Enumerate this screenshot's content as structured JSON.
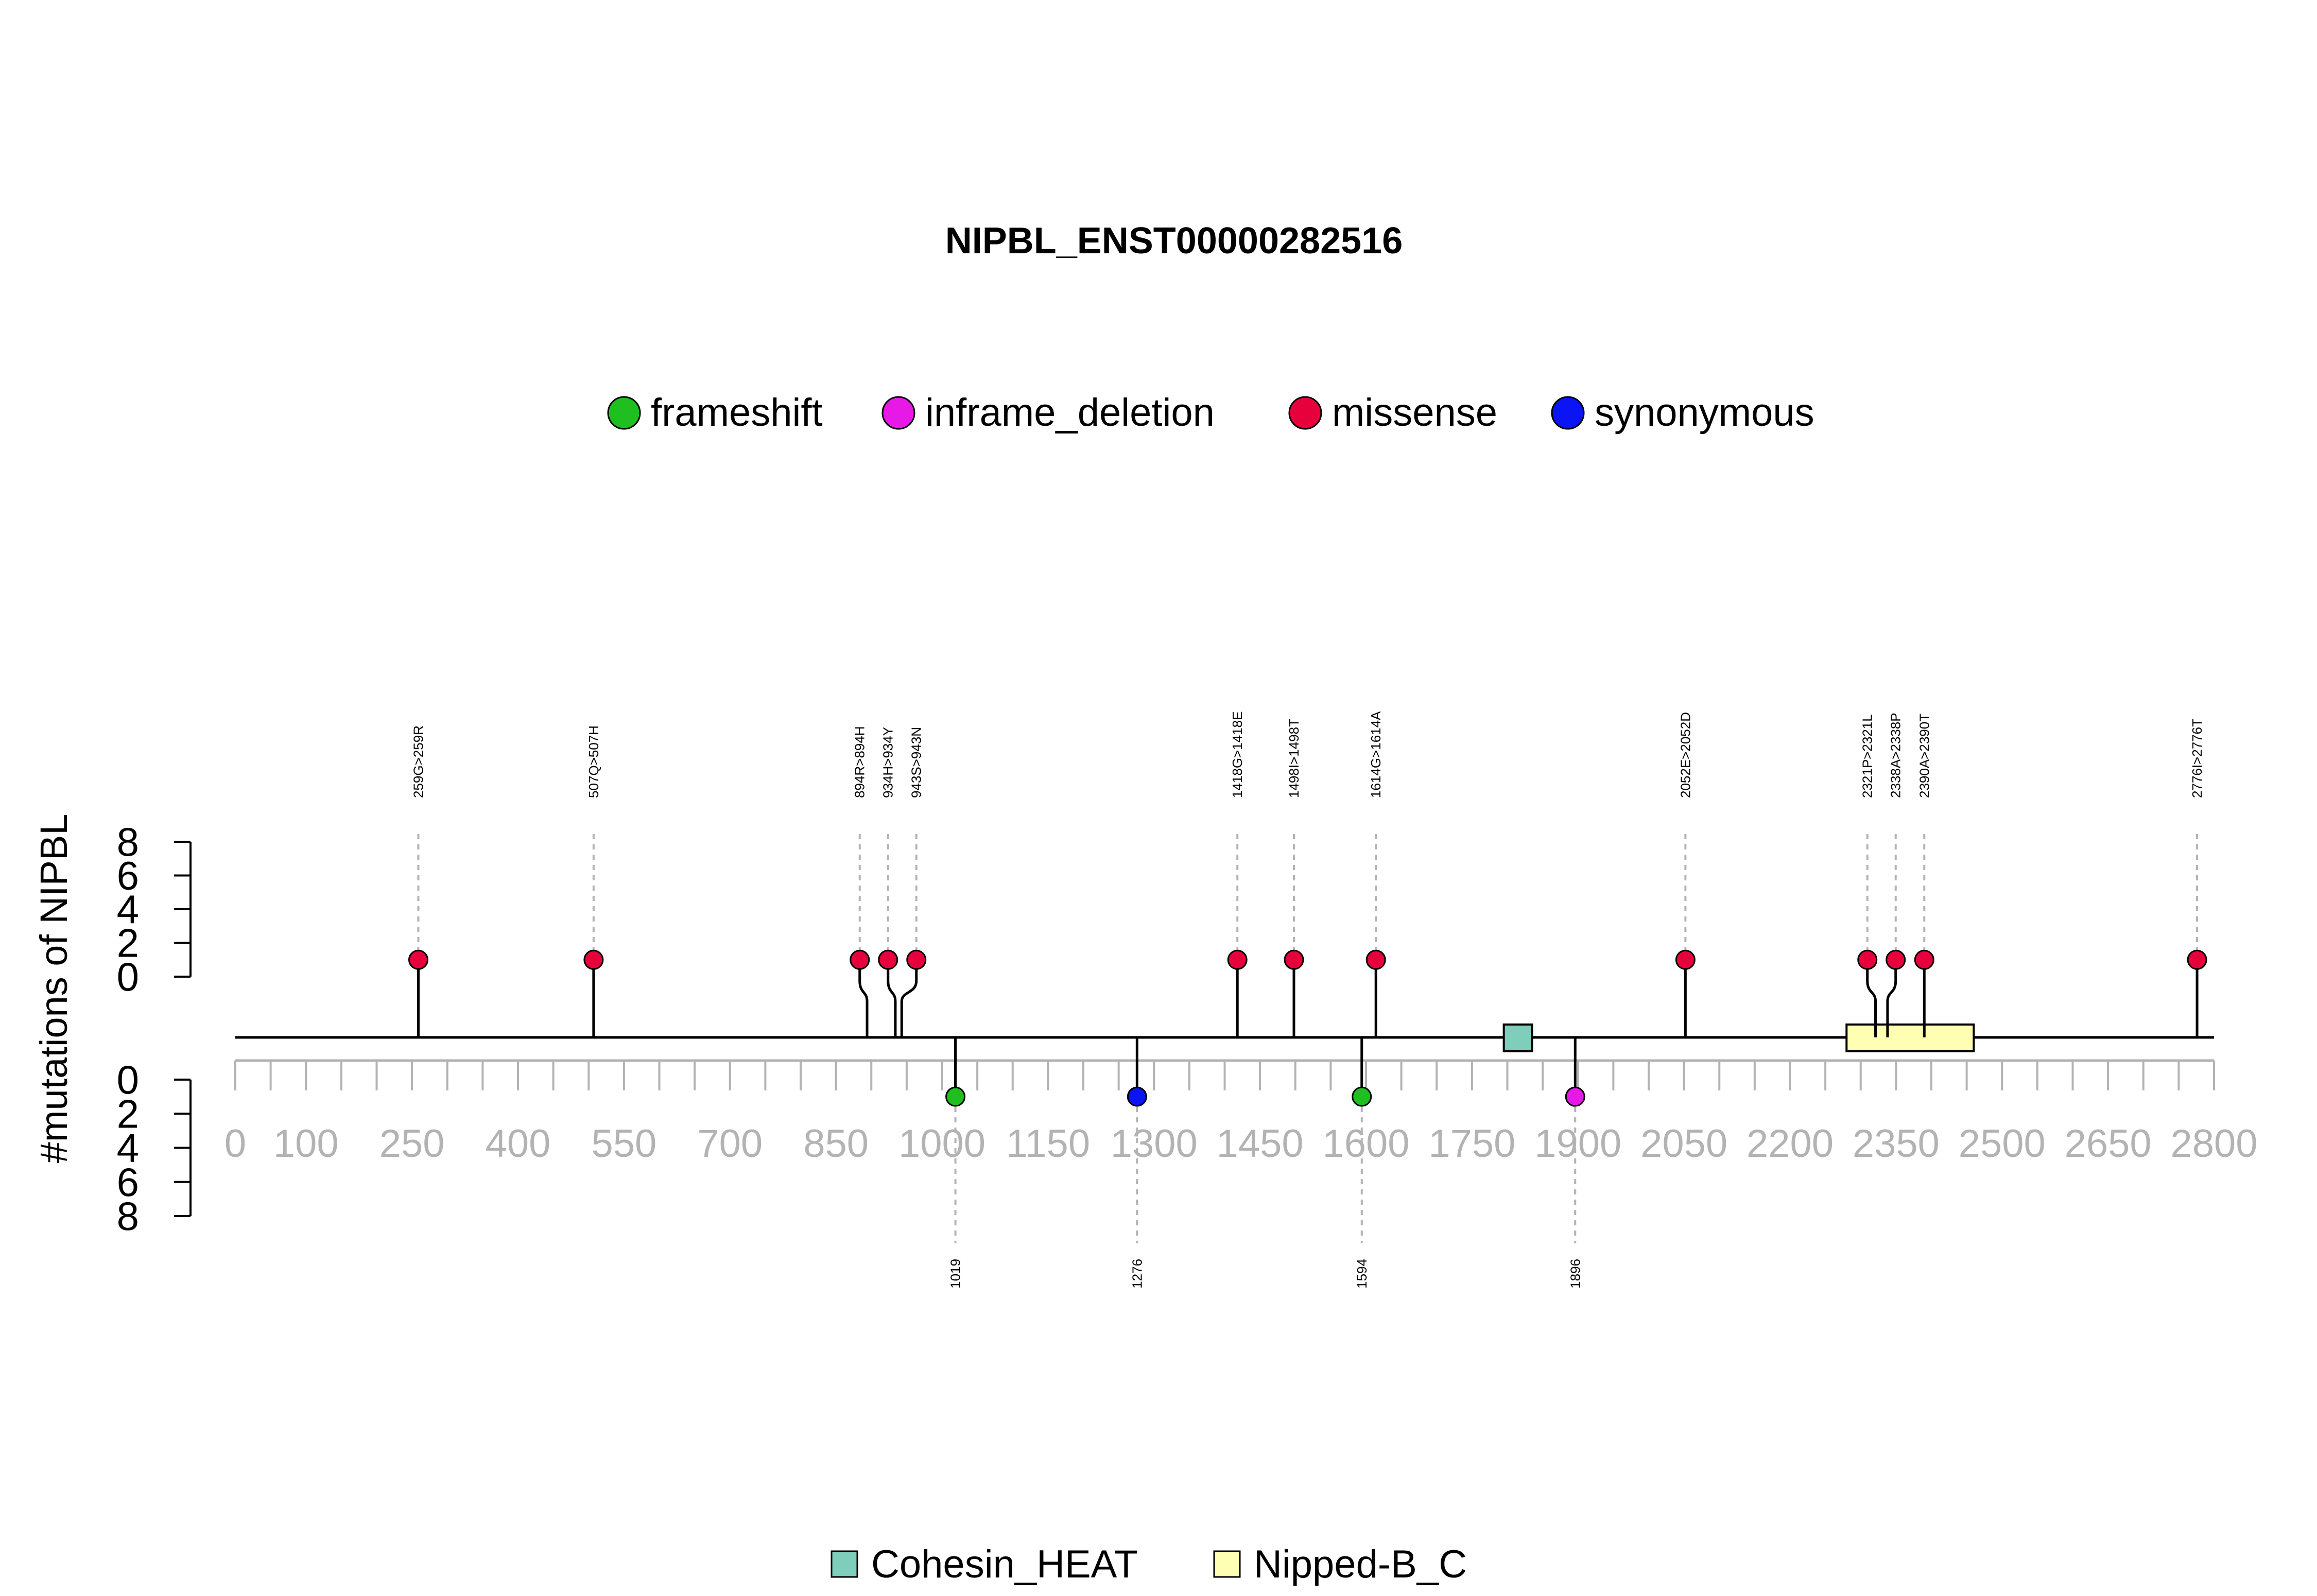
{
  "chart_data": {
    "type": "lollipop",
    "title": "NIPBL_ENST00000282516",
    "ylabel": "#mutations of NIPBL",
    "yticks": [
      "0",
      "2",
      "4",
      "6",
      "8"
    ],
    "ylim": [
      0,
      8
    ],
    "xlim": [
      0,
      2800
    ],
    "xticks_labeled": [
      "0",
      "100",
      "250",
      "400",
      "550",
      "700",
      "850",
      "1000",
      "1150",
      "1300",
      "1450",
      "1600",
      "1750",
      "1900",
      "2050",
      "2200",
      "2350",
      "2500",
      "2650",
      "2800"
    ],
    "xtick_minor_step": 50,
    "mutation_types": [
      {
        "name": "frameshift",
        "color": "#1fbf1f"
      },
      {
        "name": "inframe_deletion",
        "color": "#e619e6"
      },
      {
        "name": "missense",
        "color": "#e6003c"
      },
      {
        "name": "synonymous",
        "color": "#0a14f5"
      }
    ],
    "upper_mutations": [
      {
        "pos": 259,
        "label": "259G>259R",
        "type": "missense",
        "count": 1
      },
      {
        "pos": 507,
        "label": "507Q>507H",
        "type": "missense",
        "count": 1
      },
      {
        "pos": 894,
        "label": "894R>894H",
        "type": "missense",
        "count": 1
      },
      {
        "pos": 934,
        "label": "934H>934Y",
        "type": "missense",
        "count": 1
      },
      {
        "pos": 943,
        "label": "943S>943N",
        "type": "missense",
        "count": 1
      },
      {
        "pos": 1418,
        "label": "1418G>1418E",
        "type": "missense",
        "count": 1
      },
      {
        "pos": 1498,
        "label": "1498I>1498T",
        "type": "missense",
        "count": 1
      },
      {
        "pos": 1614,
        "label": "1614G>1614A",
        "type": "missense",
        "count": 1
      },
      {
        "pos": 2052,
        "label": "2052E>2052D",
        "type": "missense",
        "count": 1
      },
      {
        "pos": 2321,
        "label": "2321P>2321L",
        "type": "missense",
        "count": 1
      },
      {
        "pos": 2338,
        "label": "2338A>2338P",
        "type": "missense",
        "count": 1
      },
      {
        "pos": 2390,
        "label": "2390A>2390T",
        "type": "missense",
        "count": 1
      },
      {
        "pos": 2776,
        "label": "2776I>2776T",
        "type": "missense",
        "count": 1
      }
    ],
    "lower_mutations": [
      {
        "pos": 1019,
        "label": "1019",
        "type": "frameshift",
        "count": 1
      },
      {
        "pos": 1276,
        "label": "1276",
        "type": "synonymous",
        "count": 1
      },
      {
        "pos": 1594,
        "label": "1594",
        "type": "frameshift",
        "count": 1
      },
      {
        "pos": 1896,
        "label": "1896",
        "type": "inframe_deletion",
        "count": 1
      }
    ],
    "domains": [
      {
        "name": "Cohesin_HEAT",
        "start": 1795,
        "end": 1835,
        "color": "#7fcdbb"
      },
      {
        "name": "Nipped-B_C",
        "start": 2280,
        "end": 2460,
        "color": "#ffffb3"
      }
    ]
  }
}
